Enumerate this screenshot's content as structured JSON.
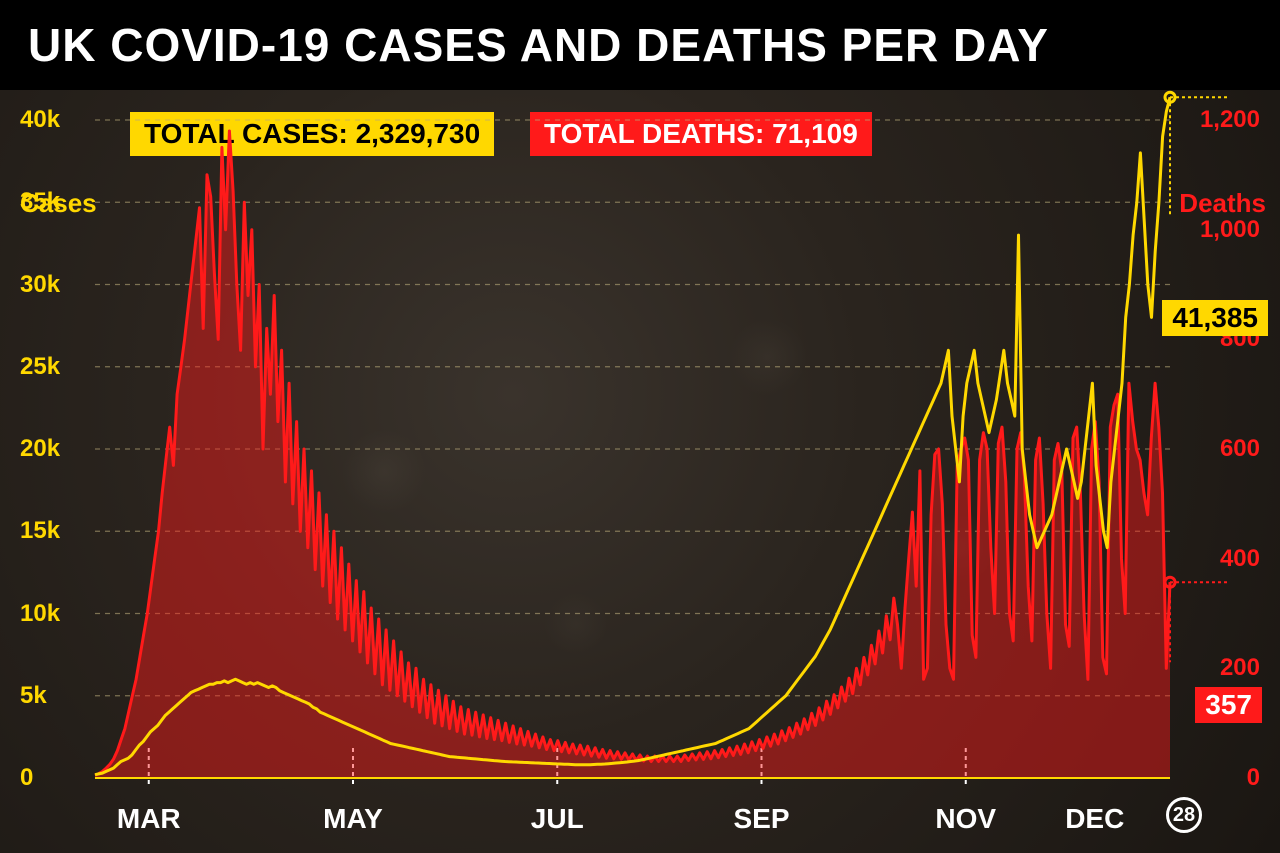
{
  "title": "UK COVID-19 CASES AND DEATHS PER DAY",
  "totals": {
    "cases_label": "TOTAL CASES: 2,329,730",
    "deaths_label": "TOTAL DEATHS: 71,109"
  },
  "callouts": {
    "cases_value": "41,385",
    "deaths_value": "357"
  },
  "axes": {
    "left_title": "Cases",
    "right_title": "Deaths",
    "left_ticks": [
      "0",
      "5k",
      "10k",
      "15k",
      "20k",
      "25k",
      "30k",
      "35k",
      "40k"
    ],
    "left_max": 40000,
    "right_ticks": [
      "0",
      "200",
      "400",
      "600",
      "800",
      "1,000",
      "1,200"
    ],
    "right_max": 1200,
    "x_labels": [
      "MAR",
      "MAY",
      "JUL",
      "SEP",
      "NOV",
      "DEC"
    ],
    "x_positions_pct": [
      5,
      24,
      43,
      62,
      81,
      93
    ],
    "end_day": "28"
  },
  "colors": {
    "cases": "#ffd800",
    "deaths": "#ff1a1a",
    "deaths_fill": "rgba(255,26,26,0.45)",
    "grid": "#b8a878",
    "bg": "#2a241e",
    "title_bg": "#000000",
    "text_white": "#ffffff"
  },
  "chart": {
    "type": "dual-axis-line-area",
    "grid_dash": "5,5",
    "line_width_cases": 3,
    "line_width_deaths": 3,
    "n_points": 300
  },
  "series": {
    "cases": [
      200,
      250,
      300,
      400,
      500,
      600,
      800,
      1000,
      1100,
      1200,
      1400,
      1700,
      2000,
      2200,
      2500,
      2800,
      3000,
      3200,
      3500,
      3800,
      4000,
      4200,
      4400,
      4600,
      4800,
      5000,
      5200,
      5300,
      5400,
      5500,
      5600,
      5700,
      5700,
      5800,
      5800,
      5900,
      5800,
      5900,
      6000,
      5900,
      5800,
      5700,
      5800,
      5700,
      5800,
      5700,
      5600,
      5500,
      5600,
      5500,
      5300,
      5200,
      5100,
      5000,
      4900,
      4800,
      4700,
      4600,
      4500,
      4300,
      4200,
      4000,
      3900,
      3800,
      3700,
      3600,
      3500,
      3400,
      3300,
      3200,
      3100,
      3000,
      2900,
      2800,
      2700,
      2600,
      2500,
      2400,
      2300,
      2200,
      2100,
      2050,
      2000,
      1950,
      1900,
      1850,
      1800,
      1750,
      1700,
      1650,
      1600,
      1550,
      1500,
      1450,
      1400,
      1350,
      1300,
      1280,
      1260,
      1240,
      1220,
      1200,
      1180,
      1160,
      1140,
      1120,
      1100,
      1080,
      1060,
      1040,
      1020,
      1000,
      990,
      980,
      970,
      960,
      950,
      940,
      930,
      920,
      910,
      900,
      890,
      880,
      870,
      860,
      850,
      840,
      830,
      820,
      810,
      800,
      800,
      800,
      810,
      820,
      830,
      840,
      850,
      870,
      890,
      910,
      930,
      950,
      970,
      1000,
      1030,
      1060,
      1100,
      1150,
      1200,
      1250,
      1300,
      1350,
      1400,
      1450,
      1500,
      1550,
      1600,
      1650,
      1700,
      1750,
      1800,
      1850,
      1900,
      1950,
      2000,
      2050,
      2100,
      2200,
      2300,
      2400,
      2500,
      2600,
      2700,
      2800,
      2900,
      3000,
      3200,
      3400,
      3600,
      3800,
      4000,
      4200,
      4400,
      4600,
      4800,
      5000,
      5300,
      5600,
      5900,
      6200,
      6500,
      6800,
      7100,
      7400,
      7800,
      8200,
      8600,
      9000,
      9500,
      10000,
      10500,
      11000,
      11500,
      12000,
      12500,
      13000,
      13500,
      14000,
      14500,
      15000,
      15500,
      16000,
      16500,
      17000,
      17500,
      18000,
      18500,
      19000,
      19500,
      20000,
      20500,
      21000,
      21500,
      22000,
      22500,
      23000,
      23500,
      24000,
      25000,
      26000,
      22000,
      20000,
      18000,
      22000,
      24000,
      25000,
      26000,
      24000,
      23000,
      22000,
      21000,
      22000,
      23000,
      24500,
      26000,
      24000,
      23000,
      22000,
      33000,
      20000,
      18000,
      16000,
      15000,
      14000,
      14500,
      15000,
      15500,
      16000,
      17000,
      18000,
      19000,
      20000,
      19000,
      18000,
      17000,
      18000,
      20000,
      22000,
      24000,
      19000,
      17000,
      15000,
      14000,
      18000,
      20000,
      22000,
      24000,
      28000,
      30000,
      33000,
      35000,
      38000,
      34000,
      30000,
      28000,
      32000,
      35000,
      39000,
      40500,
      41385
    ],
    "deaths": [
      5,
      8,
      12,
      18,
      25,
      35,
      50,
      70,
      90,
      120,
      150,
      180,
      220,
      260,
      300,
      350,
      400,
      450,
      520,
      580,
      640,
      570,
      700,
      750,
      800,
      860,
      920,
      980,
      1040,
      820,
      1100,
      1060,
      920,
      800,
      1150,
      1000,
      1180,
      1070,
      900,
      780,
      1050,
      880,
      1000,
      750,
      900,
      600,
      820,
      700,
      880,
      650,
      780,
      540,
      720,
      500,
      650,
      450,
      600,
      420,
      560,
      380,
      520,
      350,
      480,
      320,
      450,
      290,
      420,
      270,
      390,
      250,
      360,
      230,
      340,
      210,
      310,
      190,
      290,
      170,
      270,
      160,
      250,
      150,
      230,
      140,
      210,
      130,
      200,
      120,
      180,
      110,
      170,
      100,
      160,
      95,
      150,
      90,
      140,
      85,
      130,
      80,
      125,
      78,
      120,
      75,
      115,
      72,
      110,
      70,
      105,
      68,
      100,
      65,
      95,
      62,
      90,
      60,
      85,
      58,
      80,
      55,
      75,
      52,
      70,
      50,
      68,
      48,
      65,
      46,
      62,
      44,
      60,
      42,
      58,
      40,
      55,
      38,
      52,
      36,
      50,
      35,
      48,
      34,
      46,
      33,
      44,
      32,
      42,
      31,
      40,
      30,
      40,
      30,
      40,
      30,
      40,
      30,
      40,
      30,
      42,
      32,
      44,
      33,
      46,
      34,
      48,
      35,
      50,
      37,
      52,
      39,
      55,
      41,
      58,
      43,
      62,
      46,
      66,
      50,
      70,
      54,
      75,
      58,
      80,
      62,
      86,
      68,
      92,
      74,
      100,
      80,
      108,
      88,
      118,
      96,
      128,
      106,
      140,
      116,
      152,
      128,
      166,
      140,
      182,
      154,
      200,
      170,
      220,
      188,
      242,
      208,
      268,
      228,
      296,
      252,
      328,
      280,
      200,
      310,
      400,
      485,
      350,
      560,
      180,
      200,
      480,
      590,
      600,
      500,
      280,
      200,
      180,
      570,
      600,
      620,
      580,
      260,
      220,
      580,
      630,
      600,
      420,
      300,
      610,
      640,
      540,
      300,
      250,
      600,
      630,
      550,
      350,
      250,
      580,
      620,
      500,
      300,
      200,
      580,
      610,
      560,
      280,
      240,
      620,
      640,
      520,
      300,
      180,
      600,
      650,
      540,
      220,
      190,
      640,
      680,
      700,
      400,
      300,
      720,
      650,
      600,
      580,
      520,
      480,
      620,
      720,
      640,
      520,
      200,
      357
    ]
  }
}
